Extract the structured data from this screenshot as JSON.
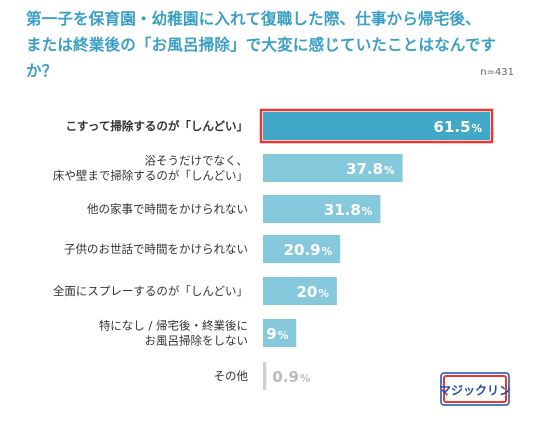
{
  "title_line1": "第一子を保育園・幼稚園に入れて復職した際、仕事から帰宅後、",
  "title_line2": "または終業後の「お風呂掃除」で大変に感じていたことはなんですか？",
  "sample_size": "n=431",
  "logo_text": "マジックリン",
  "colors": {
    "accent": "#3a9fc4",
    "highlight_bar": "#41a8c8",
    "bar": "#86c9dc",
    "highlight_border": "#e53935",
    "minor_bar": "#cfcfcf"
  },
  "chart_data": {
    "type": "bar",
    "orientation": "horizontal",
    "title": "第一子を保育園・幼稚園に入れて復職した際、仕事から帰宅後、または終業後の「お風呂掃除」で大変に感じていたことはなんですか？",
    "xlim": [
      0,
      65
    ],
    "unit": "%",
    "grid": false,
    "legend": "none",
    "categories": [
      [
        "こすって掃除するのが「しんどい」"
      ],
      [
        "浴そうだけでなく、",
        "床や壁まで掃除するのが「しんどい」"
      ],
      [
        "他の家事で時間をかけられない"
      ],
      [
        "子供のお世話で時間をかけられない"
      ],
      [
        "全面にスプレーするのが「しんどい」"
      ],
      [
        "特になし / 帰宅後・終業後に",
        "お風呂掃除をしない"
      ],
      [
        "その他"
      ]
    ],
    "values": [
      61.5,
      37.8,
      31.8,
      20.9,
      20,
      9,
      0.9
    ],
    "value_labels": [
      "61.5",
      "37.8",
      "31.8",
      "20.9",
      "20",
      "9",
      "0.9"
    ],
    "highlighted_index": 0
  }
}
